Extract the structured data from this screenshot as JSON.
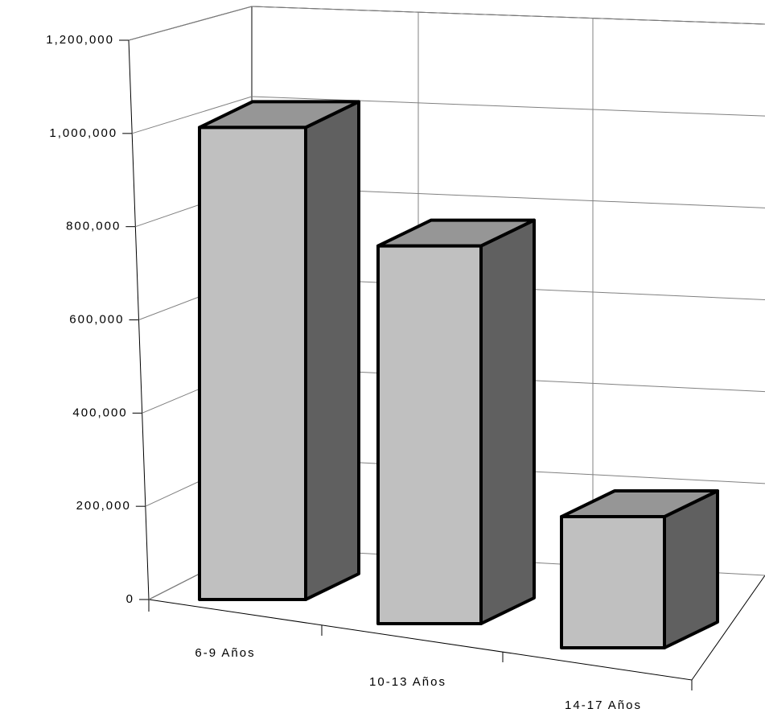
{
  "chart_data": {
    "type": "bar3d",
    "categories": [
      "6-9 Años",
      "10-13 Años",
      "14-17 Años"
    ],
    "values": [
      1010000,
      790000,
      265000
    ],
    "front_color": "#c0c0c0",
    "side_color": "#606060",
    "top_color": "#969696",
    "ylim": [
      0,
      1200000
    ],
    "yticks": [
      0,
      {
        "value": 200000,
        "label": "200,000"
      },
      {
        "value": 400000,
        "label": "400,000"
      },
      {
        "value": 600000,
        "label": "600,000"
      },
      {
        "value": 800000,
        "label": "800,000"
      },
      {
        "value": 1000000,
        "label": "1,000,000"
      },
      {
        "value": 1200000,
        "label": "1,200,000"
      }
    ],
    "grid": true
  }
}
